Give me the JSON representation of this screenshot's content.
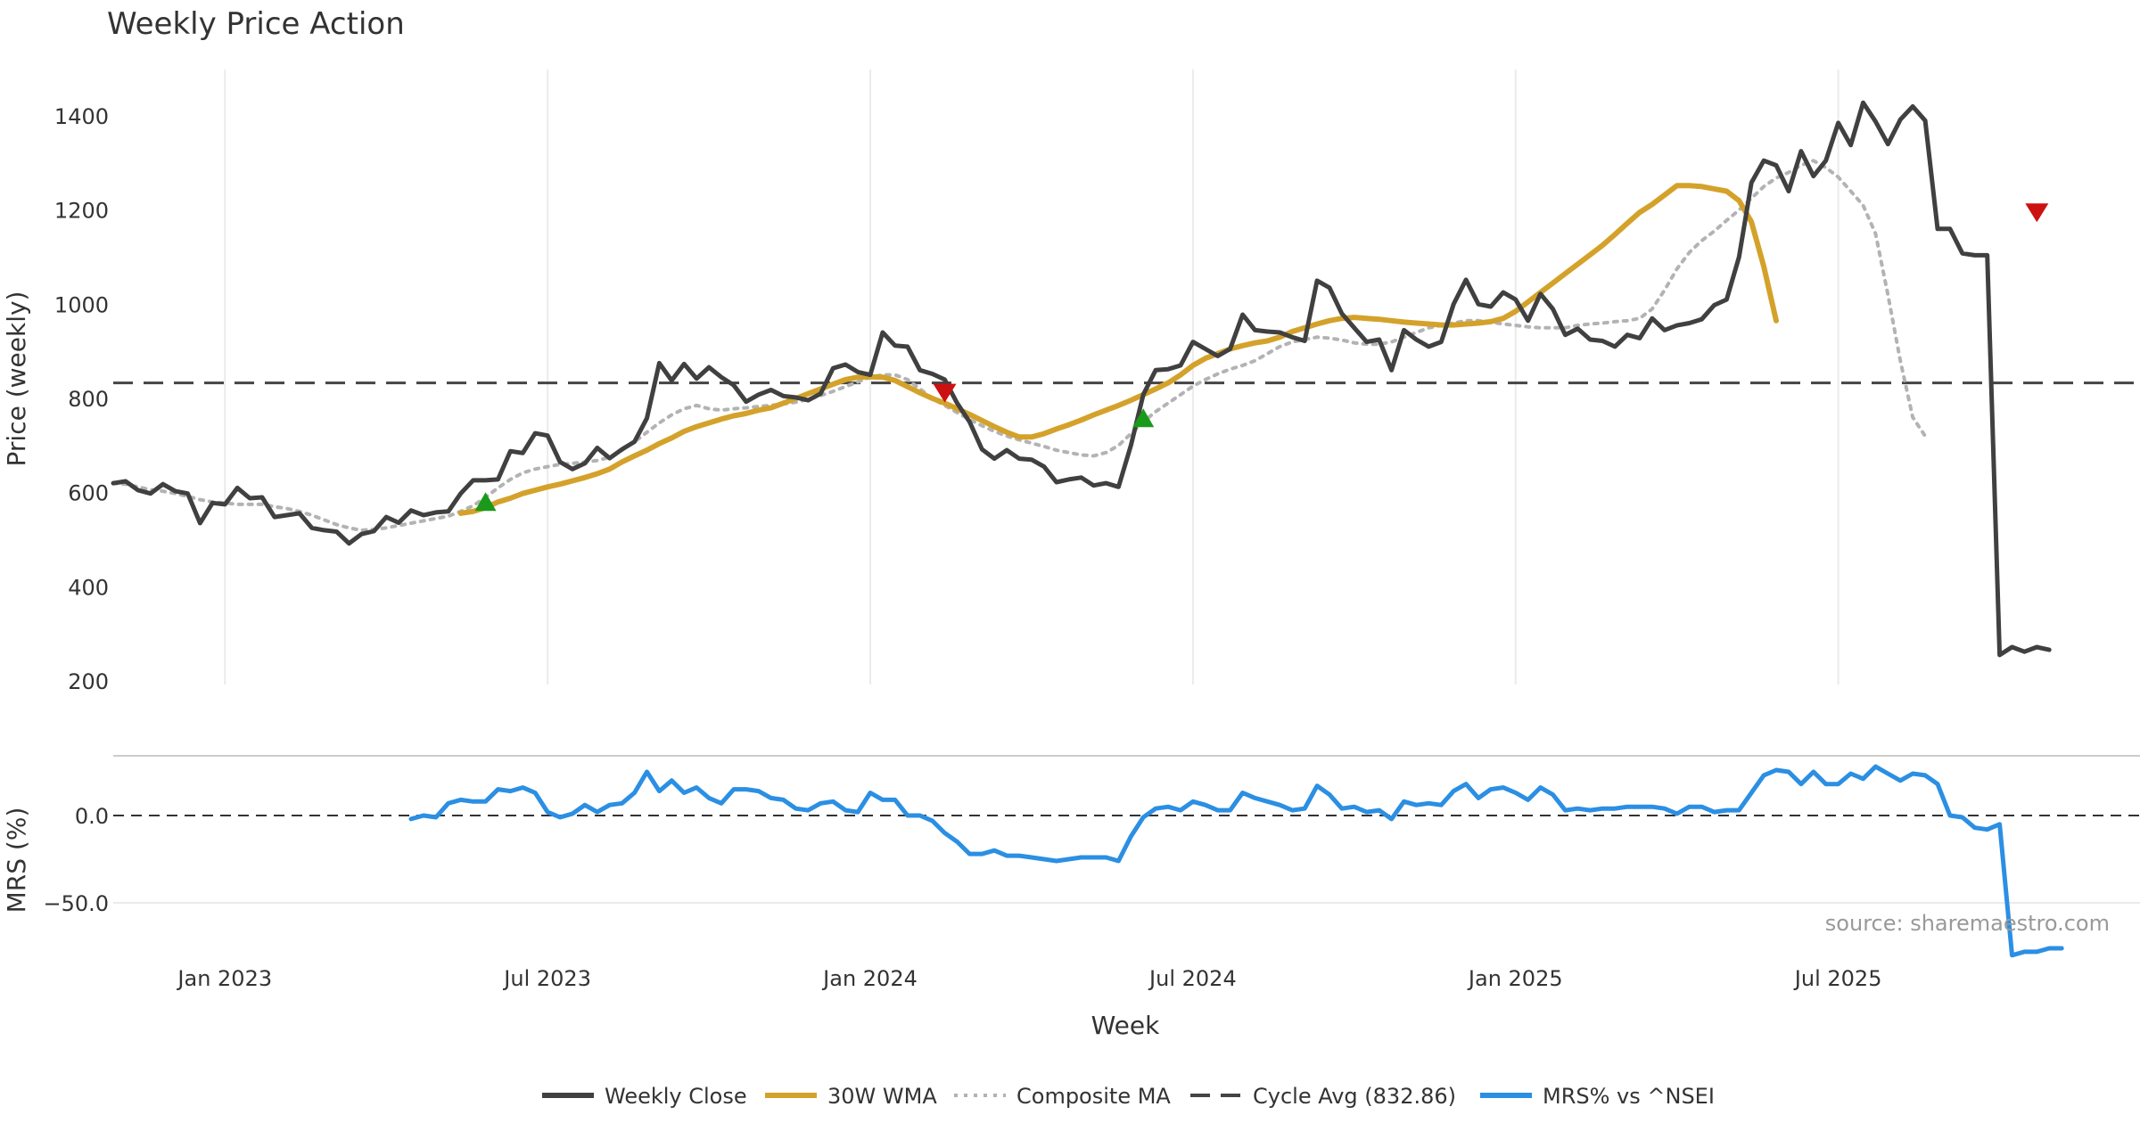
{
  "chart_data": [
    {
      "type": "line",
      "title": "Weekly Price Action",
      "ylabel": "Price (weekly)",
      "ylim": [
        200,
        1500
      ],
      "yticks": [
        200,
        400,
        600,
        800,
        1000,
        1200,
        1400
      ],
      "xticks": [
        "Jan 2023",
        "Jul 2023",
        "Jan 2024",
        "Jul 2024",
        "Jan 2025",
        "Jul 2025"
      ],
      "x_start": "2022-11",
      "weeks": 160,
      "cycle_avg": 832.86,
      "series": [
        {
          "name": "Weekly Close",
          "color": "#404040",
          "start_index": 0,
          "values": [
            620,
            624,
            605,
            598,
            618,
            603,
            598,
            535,
            578,
            575,
            610,
            588,
            590,
            548,
            552,
            556,
            525,
            520,
            517,
            492,
            512,
            518,
            548,
            536,
            562,
            552,
            558,
            560,
            598,
            626,
            626,
            628,
            688,
            684,
            726,
            721,
            665,
            650,
            662,
            695,
            673,
            692,
            708,
            758,
            875,
            838,
            873,
            842,
            866,
            845,
            828,
            793,
            808,
            818,
            805,
            802,
            796,
            810,
            864,
            872,
            856,
            850,
            940,
            912,
            910,
            860,
            852,
            840,
            790,
            750,
            692,
            672,
            690,
            672,
            670,
            655,
            622,
            628,
            632,
            615,
            620,
            612,
            700,
            808,
            860,
            862,
            870,
            920,
            905,
            890,
            905,
            978,
            945,
            942,
            940,
            930,
            922,
            1050,
            1035,
            980,
            950,
            920,
            925,
            860,
            945,
            925,
            910,
            920,
            1000,
            1052,
            1000,
            995,
            1025,
            1010,
            965,
            1022,
            990,
            935,
            948,
            925,
            922,
            910,
            935,
            928,
            970,
            945,
            955,
            960,
            968,
            998,
            1010,
            1100,
            1258,
            1305,
            1295,
            1240,
            1325,
            1272,
            1305,
            1385,
            1338,
            1428,
            1388,
            1340,
            1392,
            1420,
            1390,
            1160,
            1160,
            1108,
            1104,
            1104,
            255,
            272,
            262,
            272,
            266
          ]
        },
        {
          "name": "30W WMA",
          "color": "#d4a22a",
          "start_index": 28,
          "values": [
            556,
            560,
            568,
            580,
            588,
            598,
            605,
            612,
            618,
            625,
            632,
            640,
            650,
            665,
            678,
            690,
            704,
            716,
            730,
            740,
            748,
            756,
            763,
            768,
            775,
            780,
            790,
            800,
            810,
            820,
            830,
            840,
            845,
            846,
            845,
            838,
            825,
            812,
            800,
            790,
            778,
            766,
            753,
            740,
            728,
            718,
            718,
            725,
            735,
            744,
            754,
            765,
            775,
            785,
            796,
            808,
            820,
            833,
            850,
            870,
            885,
            895,
            905,
            912,
            918,
            922,
            930,
            942,
            950,
            958,
            965,
            970,
            972,
            970,
            968,
            965,
            962,
            960,
            958,
            956,
            956,
            958,
            960,
            963,
            970,
            985,
            1005,
            1025,
            1045,
            1065,
            1085,
            1105,
            1125,
            1148,
            1172,
            1195,
            1212,
            1232,
            1252,
            1252,
            1250,
            1245,
            1240,
            1220,
            1175,
            1080,
            965
          ]
        },
        {
          "name": "Composite MA",
          "color": "#b3b3b3",
          "start_index": 0,
          "values": [
            620,
            618,
            612,
            606,
            603,
            598,
            592,
            585,
            580,
            578,
            575,
            575,
            575,
            570,
            566,
            560,
            552,
            542,
            532,
            525,
            520,
            522,
            525,
            530,
            535,
            540,
            545,
            550,
            560,
            572,
            590,
            610,
            628,
            642,
            650,
            655,
            660,
            662,
            665,
            668,
            675,
            690,
            708,
            728,
            748,
            765,
            778,
            785,
            778,
            775,
            778,
            780,
            783,
            785,
            788,
            792,
            798,
            806,
            815,
            825,
            835,
            845,
            850,
            850,
            840,
            820,
            800,
            785,
            770,
            755,
            742,
            730,
            720,
            712,
            705,
            698,
            690,
            685,
            680,
            678,
            685,
            700,
            725,
            750,
            772,
            790,
            808,
            826,
            840,
            852,
            862,
            870,
            880,
            895,
            910,
            920,
            925,
            930,
            928,
            924,
            918,
            915,
            915,
            920,
            930,
            940,
            950,
            955,
            960,
            965,
            965,
            962,
            958,
            955,
            952,
            950,
            950,
            950,
            955,
            958,
            960,
            963,
            965,
            970,
            990,
            1030,
            1075,
            1110,
            1135,
            1155,
            1178,
            1200,
            1225,
            1250,
            1268,
            1280,
            1295,
            1305,
            1290,
            1270,
            1240,
            1210,
            1150,
            1020,
            880,
            760,
            720
          ]
        }
      ],
      "markers": [
        {
          "type": "buy",
          "index": 30,
          "value": 580,
          "color": "#1a9a1a"
        },
        {
          "type": "sell",
          "index": 67,
          "value": 812,
          "color": "#cc1111"
        },
        {
          "type": "buy",
          "index": 83,
          "value": 758,
          "color": "#1a9a1a"
        },
        {
          "type": "sell",
          "index": 155,
          "value": 1195,
          "color": "#cc1111"
        }
      ]
    },
    {
      "type": "line",
      "ylabel": "MRS (%)",
      "ylim": [
        -85,
        36
      ],
      "yticks": [
        -50.0,
        0.0
      ],
      "ytick_labels": [
        "−50.0",
        "0.0"
      ],
      "xlabel": "Week",
      "series": [
        {
          "name": "MRS% vs ^NSEI",
          "color": "#2b8fe3",
          "start_index": 24,
          "values": [
            -2,
            0,
            -1,
            7,
            9,
            8,
            8,
            15,
            14,
            16,
            13,
            2,
            -1,
            1,
            6,
            2,
            6,
            7,
            13,
            25,
            14,
            20,
            13,
            16,
            10,
            7,
            15,
            15,
            14,
            10,
            9,
            4,
            3,
            7,
            8,
            3,
            2,
            13,
            9,
            9,
            0,
            0,
            -3,
            -10,
            -15,
            -22,
            -22,
            -20,
            -23,
            -23,
            -24,
            -25,
            -26,
            -25,
            -24,
            -24,
            -24,
            -26,
            -12,
            -1,
            4,
            5,
            3,
            8,
            6,
            3,
            3,
            13,
            10,
            8,
            6,
            3,
            4,
            17,
            12,
            4,
            5,
            2,
            3,
            -2,
            8,
            6,
            7,
            6,
            14,
            18,
            10,
            15,
            16,
            13,
            9,
            16,
            12,
            3,
            4,
            3,
            4,
            4,
            5,
            5,
            5,
            4,
            1,
            5,
            5,
            2,
            3,
            3,
            13,
            23,
            26,
            25,
            18,
            25,
            18,
            18,
            24,
            21,
            28,
            24,
            20,
            24,
            23,
            18,
            0,
            -1,
            -7,
            -8,
            -5,
            -80,
            -78,
            -78,
            -76,
            -76
          ]
        }
      ]
    }
  ],
  "legend": [
    {
      "label": "Weekly Close",
      "style": "solid",
      "color": "#404040"
    },
    {
      "label": "30W WMA",
      "style": "solid",
      "color": "#d4a22a"
    },
    {
      "label": "Composite MA",
      "style": "dotted",
      "color": "#b3b3b3"
    },
    {
      "label": "Cycle Avg (832.86)",
      "style": "dashed",
      "color": "#444444"
    },
    {
      "label": "MRS% vs ^NSEI",
      "style": "solid",
      "color": "#2b8fe3"
    }
  ],
  "source": "source: sharemaestro.com"
}
